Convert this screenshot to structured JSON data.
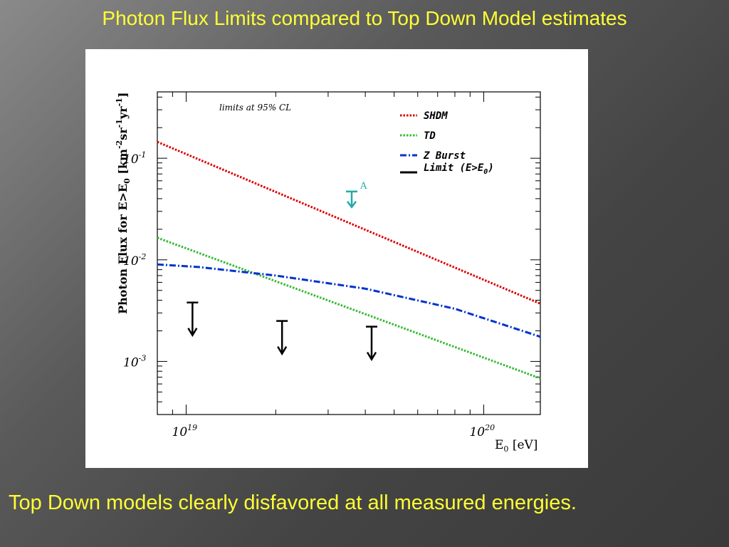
{
  "slide": {
    "title": "Photon Flux Limits compared to Top Down Model estimates",
    "footer": "Top Down models clearly disfavored at all measured energies."
  },
  "chart_data": {
    "type": "line",
    "annotation": "limits at 95% CL",
    "ylabel": "Photon Flux for E>E",
    "ylabel_sub": "0",
    "ylabel_units": " [km",
    "xlabel": "E",
    "xlabel_sub": "0",
    "xlabel_units": " [eV]",
    "x_scale": "log",
    "y_scale": "log",
    "xlim": [
      8e+18,
      1.55e+20
    ],
    "ylim": [
      0.0003,
      0.45
    ],
    "x_ticks": [
      {
        "value": 1e+19,
        "base": "10",
        "exp": "19"
      },
      {
        "value": 1e+20,
        "base": "10",
        "exp": "20"
      }
    ],
    "y_ticks": [
      {
        "value": 0.1,
        "base": "10",
        "exp": "-1"
      },
      {
        "value": 0.01,
        "base": "10",
        "exp": "-2"
      },
      {
        "value": 0.001,
        "base": "10",
        "exp": "-3"
      }
    ],
    "legend_position": "top-right",
    "series": [
      {
        "name": "SHDM",
        "color": "#dd0000",
        "style": "dotted",
        "x": [
          8e+18,
          1.55e+20
        ],
        "y": [
          0.145,
          0.0037
        ]
      },
      {
        "name": "TD",
        "color": "#33bb33",
        "style": "dotted",
        "x": [
          8e+18,
          1.55e+20
        ],
        "y": [
          0.0165,
          0.00068
        ]
      },
      {
        "name": "Z Burst",
        "color": "#0033cc",
        "style": "dashdot",
        "x": [
          8e+18,
          1.1e+19,
          2e+19,
          4e+19,
          8e+19,
          1.55e+20
        ],
        "y": [
          0.009,
          0.0085,
          0.007,
          0.0052,
          0.0033,
          0.00175
        ]
      }
    ],
    "legend_limit": "Limit (E>E",
    "legend_limit_sub": "0",
    "legend_limit_close": ")",
    "limits": [
      {
        "x": 1.05e+19,
        "y": 0.0038,
        "color": "#000000"
      },
      {
        "x": 2.1e+19,
        "y": 0.0025,
        "color": "#000000"
      },
      {
        "x": 4.2e+19,
        "y": 0.0022,
        "color": "#000000"
      }
    ],
    "limit_A": {
      "label": "A",
      "x": 3.6e+19,
      "y": 0.033,
      "color": "#22aaaa"
    }
  }
}
